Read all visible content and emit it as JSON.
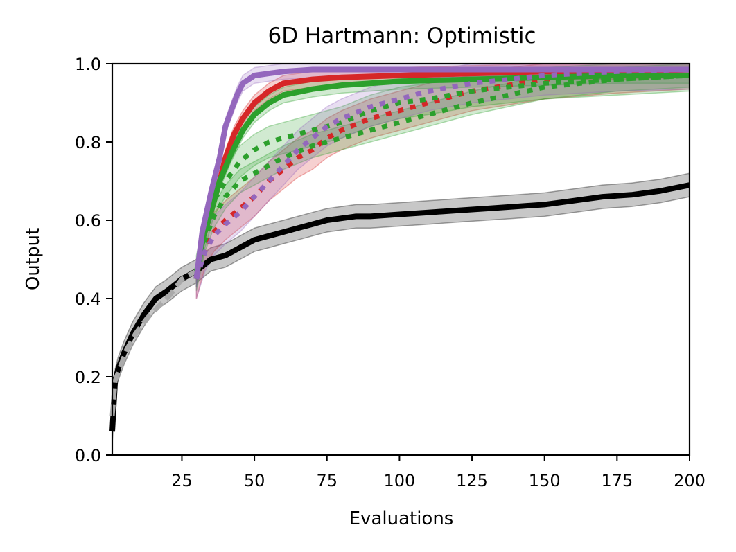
{
  "chart_data": {
    "type": "line",
    "title": "6D Hartmann: Optimistic",
    "xlabel": "Evaluations",
    "ylabel": "Output",
    "xlim": [
      1,
      200
    ],
    "ylim": [
      0.0,
      1.0
    ],
    "xticks": [
      25,
      50,
      75,
      100,
      125,
      150,
      175,
      200
    ],
    "yticks": [
      0.0,
      0.2,
      0.4,
      0.6,
      0.8,
      1.0
    ],
    "legend": "none",
    "series": [
      {
        "name": "black-solid",
        "color": "#000000",
        "style": "solid",
        "band": 0.03,
        "x": [
          1,
          2,
          3,
          5,
          8,
          12,
          16,
          20,
          25,
          30,
          35,
          40,
          45,
          50,
          55,
          60,
          65,
          70,
          75,
          80,
          85,
          90,
          100,
          110,
          120,
          130,
          140,
          150,
          160,
          170,
          180,
          190,
          200
        ],
        "y": [
          0.06,
          0.19,
          0.22,
          0.26,
          0.31,
          0.36,
          0.4,
          0.42,
          0.45,
          0.47,
          0.5,
          0.51,
          0.53,
          0.55,
          0.56,
          0.57,
          0.58,
          0.59,
          0.6,
          0.605,
          0.61,
          0.61,
          0.615,
          0.62,
          0.625,
          0.63,
          0.635,
          0.64,
          0.65,
          0.66,
          0.665,
          0.675,
          0.69
        ]
      },
      {
        "name": "gray-dashed",
        "color": "#aaaaaa",
        "style": "dashed",
        "band": 0,
        "x": [
          1,
          2,
          4,
          6,
          9,
          13,
          17,
          21,
          25,
          30
        ],
        "y": [
          0.1,
          0.19,
          0.23,
          0.27,
          0.31,
          0.35,
          0.38,
          0.41,
          0.45,
          0.47
        ]
      },
      {
        "name": "red-solid",
        "color": "#d62728",
        "style": "solid",
        "band": 0.02,
        "x": [
          30,
          32,
          35,
          38,
          40,
          43,
          46,
          50,
          55,
          60,
          70,
          80,
          100,
          125,
          150,
          175,
          200
        ],
        "y": [
          0.45,
          0.55,
          0.62,
          0.7,
          0.76,
          0.82,
          0.86,
          0.9,
          0.93,
          0.95,
          0.96,
          0.965,
          0.97,
          0.975,
          0.98,
          0.98,
          0.985
        ]
      },
      {
        "name": "red-dotted",
        "color": "#d62728",
        "style": "dotted",
        "band": 0.05,
        "x": [
          30,
          33,
          36,
          40,
          45,
          50,
          55,
          60,
          65,
          70,
          75,
          80,
          90,
          100,
          110,
          125,
          150,
          175,
          200
        ],
        "y": [
          0.45,
          0.53,
          0.57,
          0.6,
          0.63,
          0.66,
          0.7,
          0.73,
          0.76,
          0.78,
          0.81,
          0.83,
          0.86,
          0.88,
          0.9,
          0.93,
          0.96,
          0.975,
          0.985
        ]
      },
      {
        "name": "green-solid",
        "color": "#2ca02c",
        "style": "solid",
        "band": 0.02,
        "x": [
          30,
          32,
          35,
          38,
          42,
          46,
          50,
          55,
          60,
          70,
          80,
          100,
          125,
          150,
          175,
          200
        ],
        "y": [
          0.45,
          0.55,
          0.62,
          0.7,
          0.77,
          0.83,
          0.87,
          0.9,
          0.92,
          0.935,
          0.945,
          0.955,
          0.96,
          0.965,
          0.97,
          0.97
        ]
      },
      {
        "name": "green-dotted-upper",
        "color": "#2ca02c",
        "style": "dotted",
        "band": 0.04,
        "x": [
          30,
          33,
          36,
          40,
          45,
          50,
          55,
          60,
          70,
          80,
          90,
          100,
          110,
          125,
          150,
          175,
          200
        ],
        "y": [
          0.47,
          0.57,
          0.65,
          0.7,
          0.75,
          0.78,
          0.8,
          0.81,
          0.83,
          0.85,
          0.88,
          0.9,
          0.91,
          0.93,
          0.95,
          0.96,
          0.97
        ]
      },
      {
        "name": "green-dotted-lower",
        "color": "#2ca02c",
        "style": "dotted",
        "band": 0.03,
        "x": [
          30,
          33,
          36,
          40,
          45,
          50,
          55,
          60,
          70,
          80,
          90,
          100,
          110,
          125,
          150,
          175,
          200
        ],
        "y": [
          0.45,
          0.55,
          0.61,
          0.66,
          0.7,
          0.72,
          0.74,
          0.76,
          0.79,
          0.81,
          0.83,
          0.85,
          0.87,
          0.9,
          0.94,
          0.96,
          0.97
        ]
      },
      {
        "name": "purple-solid",
        "color": "#9467bd",
        "style": "solid",
        "band": 0.02,
        "x": [
          30,
          32,
          35,
          38,
          40,
          42,
          44,
          46,
          50,
          55,
          60,
          70,
          80,
          100,
          125,
          150,
          175,
          200
        ],
        "y": [
          0.45,
          0.57,
          0.67,
          0.76,
          0.84,
          0.88,
          0.92,
          0.95,
          0.97,
          0.975,
          0.98,
          0.985,
          0.985,
          0.985,
          0.985,
          0.985,
          0.985,
          0.985
        ]
      },
      {
        "name": "purple-dotted",
        "color": "#9467bd",
        "style": "dotted",
        "band": 0.05,
        "x": [
          30,
          33,
          36,
          40,
          45,
          50,
          55,
          60,
          65,
          70,
          75,
          80,
          90,
          100,
          110,
          125,
          150,
          175,
          200
        ],
        "y": [
          0.45,
          0.52,
          0.56,
          0.59,
          0.62,
          0.66,
          0.7,
          0.74,
          0.78,
          0.81,
          0.84,
          0.86,
          0.89,
          0.91,
          0.93,
          0.95,
          0.97,
          0.98,
          0.985
        ]
      }
    ]
  }
}
